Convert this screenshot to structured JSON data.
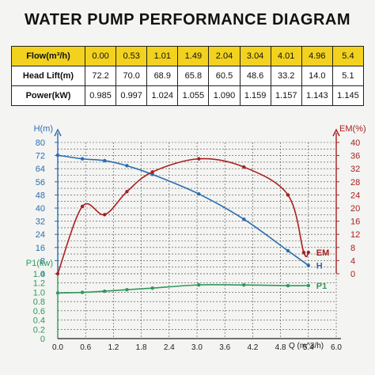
{
  "title": "WATER PUMP PERFORMANCE DIAGRAM",
  "table": {
    "header_label": "Flow(m³/h)",
    "flow": [
      "0.00",
      "0.53",
      "1.01",
      "1.49",
      "2.04",
      "3.04",
      "4.01",
      "4.96",
      "5.4"
    ],
    "rows": [
      {
        "label": "Head Lift(m)",
        "values": [
          "72.2",
          "70.0",
          "68.9",
          "65.8",
          "60.5",
          "48.6",
          "33.2",
          "14.0",
          "5.1"
        ]
      },
      {
        "label": "Power(kW)",
        "values": [
          "0.985",
          "0.997",
          "1.024",
          "1.055",
          "1.090",
          "1.159",
          "1.157",
          "1.143",
          "1.145"
        ]
      }
    ]
  },
  "chart_data": {
    "type": "line",
    "xlabel": "Q (m^3/h)",
    "xlim": [
      0,
      6.0
    ],
    "x_ticks": [
      "0.0",
      "0.6",
      "1.2",
      "1.8",
      "2.4",
      "3.0",
      "3.6",
      "4.2",
      "4.8",
      "5.4",
      "6.0"
    ],
    "left_axis": {
      "label": "H(m)",
      "ylim": [
        0,
        80
      ],
      "ticks": [
        "0",
        "4",
        "8",
        "12",
        "16",
        "20",
        "24",
        "28",
        "32",
        "36",
        "40",
        "44",
        "48",
        "52",
        "56",
        "60",
        "64",
        "68",
        "72",
        "76",
        "80"
      ]
    },
    "right_axis": {
      "label": "EM(%)",
      "ylim": [
        0,
        40
      ],
      "ticks": [
        "0",
        "2",
        "4",
        "6",
        "8",
        "10",
        "12",
        "14",
        "16",
        "18",
        "20",
        "22",
        "24",
        "26",
        "28",
        "30",
        "32",
        "34",
        "36",
        "38",
        "40"
      ]
    },
    "power_axis": {
      "label": "P1(kw)",
      "ylim": [
        0,
        1.4
      ],
      "ticks": [
        "0",
        "0.2",
        "0.4",
        "0.6",
        "0.8",
        "1.0",
        "1.2",
        "1.4"
      ]
    },
    "series": [
      {
        "name": "H",
        "axis": "left",
        "color": "#2a6db0",
        "x": [
          0.0,
          0.53,
          1.01,
          1.49,
          2.04,
          3.04,
          4.01,
          4.96,
          5.4
        ],
        "values": [
          72.2,
          70.0,
          68.9,
          65.8,
          60.5,
          48.6,
          33.2,
          14.0,
          5.1
        ]
      },
      {
        "name": "EM",
        "axis": "right",
        "color": "#a82020",
        "x": [
          0.0,
          0.53,
          1.01,
          1.49,
          2.04,
          3.04,
          4.01,
          4.96,
          5.3,
          5.4
        ],
        "values": [
          0.0,
          20.5,
          18.0,
          25.0,
          31.0,
          35.0,
          32.5,
          24.0,
          6.5,
          6.5
        ]
      },
      {
        "name": "P1",
        "axis": "power",
        "color": "#2f9a5a",
        "x": [
          0.0,
          0.53,
          1.01,
          1.49,
          2.04,
          3.04,
          4.01,
          4.96,
          5.4
        ],
        "values": [
          0.985,
          0.997,
          1.024,
          1.055,
          1.09,
          1.159,
          1.157,
          1.143,
          1.145
        ]
      }
    ],
    "colors": {
      "blue": "#2a6db0",
      "red": "#a82020",
      "green": "#2f9a5a",
      "grid": "#4a4a4a"
    }
  }
}
